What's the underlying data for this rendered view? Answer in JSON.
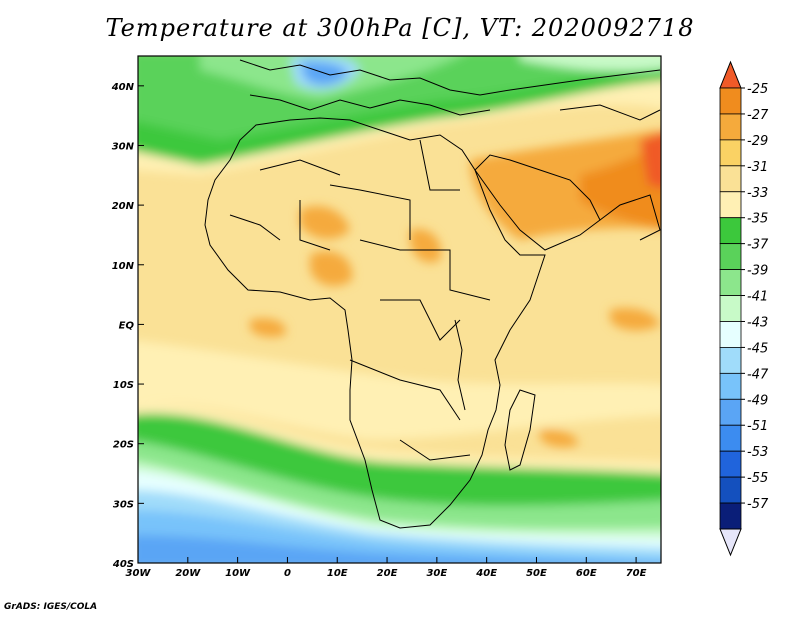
{
  "title": "Temperature at 300hPa [C], VT: 2020092718",
  "credit": "GrADS: IGES/COLA",
  "map": {
    "lon_range": [
      -30,
      75
    ],
    "lat_range": [
      -40,
      45
    ],
    "x_ticks": [
      {
        "lon": -30,
        "label": "30W"
      },
      {
        "lon": -20,
        "label": "20W"
      },
      {
        "lon": -10,
        "label": "10W"
      },
      {
        "lon": 0,
        "label": "0"
      },
      {
        "lon": 10,
        "label": "10E"
      },
      {
        "lon": 20,
        "label": "20E"
      },
      {
        "lon": 30,
        "label": "30E"
      },
      {
        "lon": 40,
        "label": "40E"
      },
      {
        "lon": 50,
        "label": "50E"
      },
      {
        "lon": 60,
        "label": "60E"
      },
      {
        "lon": 70,
        "label": "70E"
      }
    ],
    "y_ticks": [
      {
        "lat": 40,
        "label": "40N"
      },
      {
        "lat": 30,
        "label": "30N"
      },
      {
        "lat": 20,
        "label": "20N"
      },
      {
        "lat": 10,
        "label": "10N"
      },
      {
        "lat": 0,
        "label": "EQ"
      },
      {
        "lat": -10,
        "label": "10S"
      },
      {
        "lat": -20,
        "label": "20S"
      },
      {
        "lat": -30,
        "label": "30S"
      },
      {
        "lat": -40,
        "label": "40S"
      }
    ]
  },
  "colorbar": {
    "labels": [
      "-25",
      "-27",
      "-29",
      "-31",
      "-33",
      "-35",
      "-37",
      "-39",
      "-41",
      "-43",
      "-45",
      "-47",
      "-49",
      "-51",
      "-53",
      "-55",
      "-57"
    ],
    "colors": [
      "#f05a28",
      "#f08c1e",
      "#f5aa3c",
      "#fad264",
      "#fae196",
      "#fff0b4",
      "#3cc83c",
      "#5ad25a",
      "#8ce68c",
      "#c8fac8",
      "#e6ffff",
      "#a0dcfa",
      "#78c3fa",
      "#5aa5f5",
      "#3c8cf0",
      "#2064dc",
      "#1450be",
      "#0a1e78",
      "#e6e6fa"
    ]
  }
}
